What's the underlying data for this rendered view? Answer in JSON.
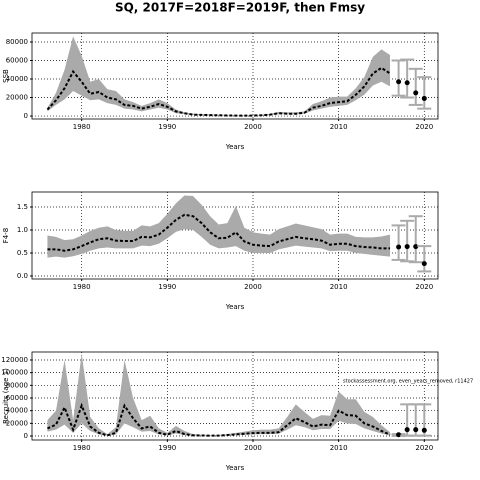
{
  "chart_data": [
    {
      "type": "line",
      "title": "SQ, 2017F=2018F=2019F, then Fmsy",
      "xlabel": "Years",
      "ylabel": "SSB",
      "x": [
        1976,
        1977,
        1978,
        1979,
        1980,
        1981,
        1982,
        1983,
        1984,
        1985,
        1986,
        1987,
        1988,
        1989,
        1990,
        1991,
        1992,
        1993,
        1994,
        1995,
        1996,
        1997,
        1998,
        1999,
        2000,
        2001,
        2002,
        2003,
        2004,
        2005,
        2006,
        2007,
        2008,
        2009,
        2010,
        2011,
        2012,
        2013,
        2014,
        2015,
        2016
      ],
      "values": [
        7000,
        17000,
        30000,
        48000,
        37000,
        24000,
        26000,
        20000,
        18000,
        12000,
        11000,
        8000,
        10000,
        13000,
        10000,
        5000,
        3000,
        1500,
        1200,
        1000,
        800,
        600,
        500,
        500,
        500,
        800,
        1500,
        3000,
        2500,
        2500,
        3500,
        9000,
        11000,
        14000,
        15000,
        16000,
        23000,
        32000,
        46000,
        52000,
        46000
      ],
      "lower": [
        5000,
        12000,
        18000,
        27000,
        22000,
        17000,
        18000,
        14000,
        12000,
        8000,
        7000,
        5000,
        7000,
        9000,
        7000,
        3000,
        2000,
        1000,
        800,
        600,
        500,
        400,
        300,
        300,
        300,
        500,
        1000,
        2000,
        1800,
        1800,
        2500,
        6000,
        8000,
        10000,
        11000,
        12000,
        17000,
        23000,
        33000,
        37000,
        32000
      ],
      "upper": [
        9000,
        25000,
        50000,
        86000,
        65000,
        37000,
        40000,
        29000,
        27000,
        18000,
        15000,
        11000,
        14000,
        18000,
        14000,
        7000,
        4000,
        2500,
        2000,
        1800,
        1500,
        1200,
        1000,
        1000,
        1000,
        1500,
        2500,
        4500,
        4000,
        4000,
        5000,
        13000,
        16000,
        20000,
        21000,
        21000,
        30000,
        42000,
        64000,
        72000,
        66000
      ],
      "projection": {
        "x": [
          2017,
          2018,
          2019,
          2020
        ],
        "values": [
          37000,
          36000,
          25000,
          19000
        ],
        "lower": [
          22000,
          20000,
          12000,
          8000
        ],
        "upper": [
          60000,
          61000,
          51000,
          42000
        ]
      },
      "xlim": [
        1974.2,
        2021.6
      ],
      "xticks": [
        1980,
        1990,
        2000,
        2010,
        2020
      ],
      "ylim": [
        -3200,
        89700
      ],
      "yticks": [
        0,
        20000,
        40000,
        60000,
        80000
      ],
      "grid": true
    },
    {
      "type": "line",
      "xlabel": "Years",
      "ylabel": "F4-8",
      "x": [
        1976,
        1977,
        1978,
        1979,
        1980,
        1981,
        1982,
        1983,
        1984,
        1985,
        1986,
        1987,
        1988,
        1989,
        1990,
        1991,
        1992,
        1993,
        1994,
        1995,
        1996,
        1997,
        1998,
        1999,
        2000,
        2001,
        2002,
        2003,
        2004,
        2005,
        2006,
        2007,
        2008,
        2009,
        2010,
        2011,
        2012,
        2013,
        2014,
        2015,
        2016
      ],
      "values": [
        0.58,
        0.58,
        0.55,
        0.58,
        0.65,
        0.73,
        0.8,
        0.82,
        0.77,
        0.76,
        0.76,
        0.85,
        0.84,
        0.9,
        1.05,
        1.22,
        1.33,
        1.3,
        1.15,
        0.95,
        0.82,
        0.83,
        0.95,
        0.75,
        0.68,
        0.66,
        0.65,
        0.75,
        0.8,
        0.85,
        0.82,
        0.8,
        0.77,
        0.68,
        0.7,
        0.7,
        0.65,
        0.63,
        0.62,
        0.6,
        0.6
      ],
      "lower": [
        0.4,
        0.42,
        0.4,
        0.43,
        0.48,
        0.55,
        0.6,
        0.62,
        0.6,
        0.6,
        0.6,
        0.66,
        0.65,
        0.7,
        0.82,
        0.96,
        1.02,
        1.0,
        0.85,
        0.68,
        0.6,
        0.62,
        0.65,
        0.55,
        0.5,
        0.5,
        0.5,
        0.58,
        0.62,
        0.66,
        0.64,
        0.62,
        0.6,
        0.54,
        0.55,
        0.55,
        0.5,
        0.48,
        0.46,
        0.44,
        0.42
      ],
      "upper": [
        0.88,
        0.85,
        0.78,
        0.8,
        0.88,
        0.98,
        1.05,
        1.08,
        1.0,
        0.98,
        0.98,
        1.1,
        1.08,
        1.15,
        1.35,
        1.58,
        1.75,
        1.74,
        1.55,
        1.3,
        1.12,
        1.15,
        1.52,
        1.05,
        0.95,
        0.92,
        0.9,
        1.02,
        1.08,
        1.14,
        1.1,
        1.06,
        1.02,
        0.9,
        0.92,
        0.92,
        0.85,
        0.84,
        0.84,
        0.86,
        0.9
      ],
      "projection": {
        "x": [
          2017,
          2018,
          2019,
          2020
        ],
        "values": [
          0.63,
          0.64,
          0.64,
          0.27
        ],
        "lower": [
          0.35,
          0.32,
          0.3,
          0.1
        ],
        "upper": [
          1.1,
          1.2,
          1.3,
          0.65
        ]
      },
      "xlim": [
        1974.2,
        2021.6
      ],
      "xticks": [
        1980,
        1990,
        2000,
        2010,
        2020
      ],
      "ylim": [
        -0.065,
        1.826
      ],
      "yticks": [
        {
          "value": 0,
          "label": "0.0"
        },
        0.5,
        {
          "value": 1,
          "label": "1.0"
        },
        1.5
      ],
      "grid": true
    },
    {
      "type": "line",
      "xlabel": "Years",
      "ylabel": "Recruits (age 1)",
      "annotation": "stockassessment.org, even_years_removed, r11427",
      "x": [
        1976,
        1977,
        1978,
        1979,
        1980,
        1981,
        1982,
        1983,
        1984,
        1985,
        1986,
        1987,
        1988,
        1989,
        1990,
        1991,
        1992,
        1993,
        1994,
        1995,
        1996,
        1997,
        1998,
        1999,
        2000,
        2001,
        2002,
        2003,
        2004,
        2005,
        2006,
        2007,
        2008,
        2009,
        2010,
        2011,
        2012,
        2013,
        2014,
        2015,
        2016
      ],
      "values": [
        12000,
        18000,
        45000,
        10000,
        48000,
        15000,
        5000,
        1000,
        5000,
        48000,
        28000,
        12000,
        15000,
        5000,
        2000,
        8000,
        3000,
        1000,
        800,
        600,
        700,
        1500,
        2500,
        3500,
        4500,
        5000,
        5000,
        6000,
        17000,
        28000,
        22000,
        15000,
        18000,
        17000,
        40000,
        33000,
        32000,
        20000,
        15000,
        8000,
        2000
      ],
      "lower": [
        7000,
        10000,
        18000,
        5000,
        20000,
        8000,
        2500,
        500,
        2500,
        20000,
        14000,
        7000,
        8000,
        2500,
        1000,
        4000,
        1500,
        500,
        400,
        300,
        350,
        800,
        1500,
        2000,
        2500,
        3000,
        3000,
        3500,
        10000,
        17000,
        14000,
        9000,
        11000,
        11000,
        24000,
        20000,
        19000,
        12000,
        8000,
        4000,
        800
      ],
      "upper": [
        25000,
        40000,
        120000,
        25000,
        130000,
        30000,
        12000,
        3000,
        14000,
        120000,
        60000,
        25000,
        32000,
        12000,
        5000,
        16000,
        8000,
        3000,
        2000,
        1500,
        1500,
        3000,
        5000,
        7000,
        9000,
        10000,
        10000,
        12000,
        30000,
        50000,
        38000,
        27000,
        33000,
        32000,
        70000,
        58000,
        58000,
        38000,
        30000,
        17000,
        6000
      ],
      "projection": {
        "x": [
          2017,
          2018,
          2019,
          2020
        ],
        "values": [
          2000,
          10000,
          10000,
          9000
        ],
        "lower": [
          200,
          500,
          500,
          500
        ],
        "upper": [
          3000,
          50000,
          50000,
          50000
        ]
      },
      "xlim": [
        1974.2,
        2021.6
      ],
      "xticks": [
        1980,
        1990,
        2000,
        2010,
        2020
      ],
      "ylim": [
        -6300,
        132600
      ],
      "yticks": [
        0,
        20000,
        40000,
        60000,
        80000,
        100000,
        120000
      ],
      "grid": true
    }
  ]
}
